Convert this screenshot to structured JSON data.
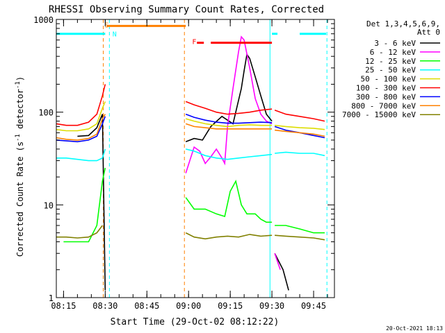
{
  "chart_data": {
    "type": "line",
    "title": "RHESSI Observing Summary Count Rates, Corrected",
    "xlabel": "Start Time (29-Oct-02 08:12:22)",
    "ylabel_main": "Corrected Count Rate (s",
    "ylabel_sup1": "-1",
    "ylabel_mid": " detector",
    "ylabel_sup2": "-1",
    "ylabel_end": ")",
    "yscale": "log",
    "ylim": [
      1,
      1000
    ],
    "xlim_min": [
      12.4,
      112.5
    ],
    "x_ticks": [
      {
        "v": 15,
        "label": "08:15"
      },
      {
        "v": 30,
        "label": "08:30"
      },
      {
        "v": 45,
        "label": "08:45"
      },
      {
        "v": 60,
        "label": "09:00"
      },
      {
        "v": 75,
        "label": "09:15"
      },
      {
        "v": 90,
        "label": "09:30"
      },
      {
        "v": 105,
        "label": "09:45"
      }
    ],
    "y_ticks": [
      {
        "v": 1,
        "label": "1"
      },
      {
        "v": 10,
        "label": "10"
      },
      {
        "v": 100,
        "label": "100"
      },
      {
        "v": 1000,
        "label": "1000"
      }
    ],
    "legend_title": [
      "Det 1,3,4,5,6,9,",
      "Att 0"
    ],
    "series": [
      {
        "name": "3 - 6 keV",
        "color": "#000000",
        "segments": [
          [
            [
              20,
              55
            ],
            [
              24,
              56
            ],
            [
              27,
              68
            ],
            [
              29,
              95
            ],
            [
              30,
              1.2
            ]
          ],
          [
            [
              59,
              48
            ],
            [
              62,
              52
            ],
            [
              65,
              50
            ],
            [
              68,
              70
            ],
            [
              72,
              90
            ],
            [
              76,
              75
            ],
            [
              79,
              180
            ],
            [
              80,
              280
            ],
            [
              81,
              420
            ],
            [
              82,
              380
            ],
            [
              84,
              240
            ],
            [
              86,
              150
            ],
            [
              88,
              95
            ],
            [
              90,
              80
            ]
          ],
          [
            [
              91,
              3
            ],
            [
              94,
              2
            ],
            [
              96,
              1.2
            ]
          ]
        ]
      },
      {
        "name": "6 - 12 keV",
        "color": "#ff00ff",
        "segments": [
          [
            [
              59,
              22
            ],
            [
              62,
              42
            ],
            [
              64,
              38
            ],
            [
              66,
              28
            ],
            [
              68,
              33
            ],
            [
              70,
              40
            ],
            [
              72,
              32
            ],
            [
              73,
              28
            ],
            [
              74,
              70
            ],
            [
              76,
              180
            ],
            [
              78,
              450
            ],
            [
              79,
              650
            ],
            [
              80,
              600
            ],
            [
              82,
              300
            ],
            [
              84,
              140
            ],
            [
              86,
              95
            ],
            [
              88,
              80
            ],
            [
              90,
              75
            ]
          ],
          [
            [
              91,
              3
            ],
            [
              93,
              2
            ]
          ]
        ]
      },
      {
        "name": "12 - 25 keV",
        "color": "#00ff00",
        "segments": [
          [
            [
              15,
              4
            ],
            [
              20,
              4
            ],
            [
              24,
              4
            ],
            [
              27,
              6
            ],
            [
              29,
              18
            ],
            [
              30,
              25
            ]
          ],
          [
            [
              59,
              12
            ],
            [
              62,
              9
            ],
            [
              66,
              9
            ],
            [
              70,
              8
            ],
            [
              73,
              7.5
            ],
            [
              75,
              14
            ],
            [
              77,
              18
            ],
            [
              79,
              10
            ],
            [
              81,
              8
            ],
            [
              84,
              8
            ],
            [
              86,
              7
            ],
            [
              88,
              6.5
            ],
            [
              90,
              6.5
            ]
          ],
          [
            [
              91,
              6
            ],
            [
              95,
              6
            ],
            [
              100,
              5.5
            ],
            [
              105,
              5
            ],
            [
              109,
              5
            ]
          ]
        ]
      },
      {
        "name": "25 - 50 keV",
        "color": "#00ffff",
        "segments": [
          [
            [
              12.4,
              32
            ],
            [
              16,
              32
            ],
            [
              20,
              31
            ],
            [
              24,
              30
            ],
            [
              27,
              30
            ],
            [
              29,
              32
            ],
            [
              30,
              40
            ]
          ],
          [
            [
              59,
              40
            ],
            [
              62,
              38
            ],
            [
              66,
              34
            ],
            [
              70,
              32
            ],
            [
              74,
              31
            ],
            [
              78,
              32
            ],
            [
              82,
              33
            ],
            [
              86,
              34
            ],
            [
              90,
              35
            ]
          ],
          [
            [
              91,
              36
            ],
            [
              95,
              37
            ],
            [
              100,
              36
            ],
            [
              105,
              36
            ],
            [
              109,
              34
            ]
          ]
        ]
      },
      {
        "name": "50 - 100 keV",
        "color": "#dddd00",
        "segments": [
          [
            [
              12.4,
              65
            ],
            [
              16,
              63
            ],
            [
              20,
              63
            ],
            [
              24,
              66
            ],
            [
              27,
              75
            ],
            [
              29,
              110
            ],
            [
              30,
              130
            ]
          ],
          [
            [
              59,
              85
            ],
            [
              62,
              80
            ],
            [
              66,
              75
            ],
            [
              70,
              72
            ],
            [
              74,
              70
            ],
            [
              78,
              72
            ],
            [
              82,
              73
            ],
            [
              86,
              72
            ],
            [
              90,
              72
            ]
          ],
          [
            [
              91,
              72
            ],
            [
              95,
              70
            ],
            [
              100,
              68
            ],
            [
              105,
              67
            ],
            [
              109,
              65
            ]
          ]
        ]
      },
      {
        "name": "100 - 300 keV",
        "color": "#ff0000",
        "segments": [
          [
            [
              12.4,
              75
            ],
            [
              16,
              72
            ],
            [
              20,
              72
            ],
            [
              24,
              78
            ],
            [
              27,
              95
            ],
            [
              29,
              150
            ],
            [
              30,
              200
            ]
          ],
          [
            [
              59,
              130
            ],
            [
              62,
              120
            ],
            [
              66,
              110
            ],
            [
              70,
              100
            ],
            [
              74,
              95
            ],
            [
              78,
              97
            ],
            [
              82,
              100
            ],
            [
              86,
              105
            ],
            [
              90,
              108
            ]
          ],
          [
            [
              91,
              105
            ],
            [
              95,
              95
            ],
            [
              100,
              90
            ],
            [
              105,
              85
            ],
            [
              109,
              80
            ]
          ]
        ]
      },
      {
        "name": "300 - 800 keV",
        "color": "#0000ff",
        "segments": [
          [
            [
              12.4,
              50
            ],
            [
              16,
              49
            ],
            [
              20,
              48
            ],
            [
              24,
              50
            ],
            [
              27,
              55
            ],
            [
              29,
              75
            ],
            [
              30,
              90
            ]
          ],
          [
            [
              59,
              95
            ],
            [
              62,
              88
            ],
            [
              66,
              82
            ],
            [
              70,
              78
            ],
            [
              74,
              76
            ],
            [
              78,
              76
            ],
            [
              82,
              77
            ],
            [
              86,
              78
            ],
            [
              90,
              77
            ]
          ],
          [
            [
              91,
              70
            ],
            [
              95,
              64
            ],
            [
              100,
              60
            ],
            [
              105,
              56
            ],
            [
              109,
              53
            ]
          ]
        ]
      },
      {
        "name": "800 - 7000 keV",
        "color": "#ff8000",
        "segments": [
          [
            [
              12.4,
              53
            ],
            [
              16,
              51
            ],
            [
              20,
              50
            ],
            [
              24,
              52
            ],
            [
              27,
              58
            ],
            [
              29,
              85
            ],
            [
              30,
              95
            ]
          ],
          [
            [
              59,
              75
            ],
            [
              62,
              70
            ],
            [
              66,
              68
            ],
            [
              70,
              66
            ],
            [
              74,
              66
            ],
            [
              78,
              66
            ],
            [
              82,
              66
            ],
            [
              86,
              66
            ],
            [
              90,
              66
            ]
          ],
          [
            [
              91,
              64
            ],
            [
              95,
              62
            ],
            [
              100,
              60
            ],
            [
              105,
              58
            ],
            [
              109,
              55
            ]
          ]
        ]
      },
      {
        "name": "7000 - 15000 keV",
        "color": "#808000",
        "segments": [
          [
            [
              12.4,
              4.5
            ],
            [
              16,
              4.5
            ],
            [
              20,
              4.4
            ],
            [
              24,
              4.5
            ],
            [
              27,
              5
            ],
            [
              29,
              6
            ]
          ],
          [
            [
              59,
              5
            ],
            [
              62,
              4.5
            ],
            [
              66,
              4.3
            ],
            [
              70,
              4.5
            ],
            [
              74,
              4.6
            ],
            [
              78,
              4.5
            ],
            [
              82,
              4.8
            ],
            [
              86,
              4.6
            ],
            [
              90,
              4.7
            ]
          ],
          [
            [
              91,
              4.7
            ],
            [
              95,
              4.6
            ],
            [
              100,
              4.5
            ],
            [
              105,
              4.4
            ],
            [
              109,
              4.2
            ]
          ]
        ]
      }
    ],
    "flag_bars": [
      {
        "label": "S",
        "color": "#ff8000",
        "x_start": 30.5,
        "x_end": 59,
        "value": 850
      },
      {
        "label": "N",
        "color": "#00ffff",
        "x_start": 12.4,
        "x_end": 30,
        "value": 700
      },
      {
        "label": "N",
        "color": "#00ffff",
        "x_start": 90,
        "x_end": 92,
        "value": 700
      },
      {
        "label": "N",
        "color": "#00ffff",
        "x_start": 100,
        "x_end": 109.5,
        "value": 700
      },
      {
        "label": "F",
        "color": "#ff0000",
        "x_start": 68,
        "x_end": 90,
        "value": 560
      },
      {
        "label": "F",
        "color": "#ff0000",
        "x_start": 63,
        "x_end": 65.5,
        "value": 560
      }
    ],
    "flag_labels": [
      {
        "text": "S",
        "color": "#ff8000",
        "x": 29.3,
        "value": 880
      },
      {
        "text": "N",
        "color": "#00ffff",
        "x": 32.1,
        "value": 700
      },
      {
        "text": "F",
        "color": "#ff0000",
        "x": 60.8,
        "value": 580
      }
    ],
    "vlines": [
      {
        "x": 29.3,
        "color": "#ff8000",
        "dash": true
      },
      {
        "x": 31.5,
        "color": "#00ffff",
        "dash": true
      },
      {
        "x": 58.5,
        "color": "#ff8000",
        "dash": true
      },
      {
        "x": 89.3,
        "color": "#00ffff",
        "dash": false
      },
      {
        "x": 109.8,
        "color": "#00ffff",
        "dash": true
      }
    ],
    "footer": "20-Oct-2021 18:13"
  }
}
